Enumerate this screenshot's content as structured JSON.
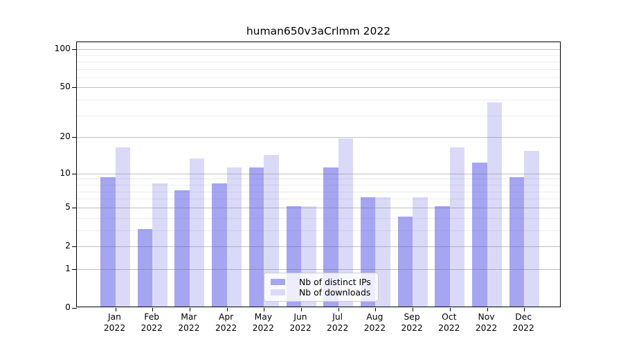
{
  "title": "human650v3aCrlmm 2022",
  "background_color": "#ffffff",
  "axis_color": "#000000",
  "chart_data": {
    "type": "bar",
    "title": "human650v3aCrlmm 2022",
    "categories": [
      "Jan",
      "Feb",
      "Mar",
      "Apr",
      "May",
      "Jun",
      "Jul",
      "Aug",
      "Sep",
      "Oct",
      "Nov",
      "Dec"
    ],
    "year": "2022",
    "series": [
      {
        "name": "Nb of distinct IPs",
        "color": "#a5a5f2",
        "values": [
          9,
          3,
          7,
          8,
          11,
          5,
          11,
          6,
          4,
          5,
          12,
          9
        ]
      },
      {
        "name": "Nb of downloads",
        "color": "#dadaf8",
        "values": [
          16,
          8,
          13,
          11,
          14,
          5,
          19,
          6,
          6,
          16,
          37,
          15
        ]
      }
    ],
    "y_scale": "log10(1+v)",
    "y_ticks": [
      0,
      1,
      2,
      5,
      10,
      20,
      50,
      100
    ],
    "y_tick_labels": [
      "0",
      "1",
      "2",
      "5",
      "10",
      "20",
      "50",
      "100"
    ],
    "y_minor_ticks": [
      3,
      4,
      6,
      7,
      8,
      9,
      30,
      40,
      60,
      70,
      80,
      90
    ],
    "y_top_f": 2.058,
    "grid": "on",
    "legend_position": "lower center",
    "xlabel": "",
    "ylabel": ""
  },
  "legend": {
    "items": [
      {
        "label": "Nb of distinct IPs"
      },
      {
        "label": "Nb of downloads"
      }
    ]
  }
}
